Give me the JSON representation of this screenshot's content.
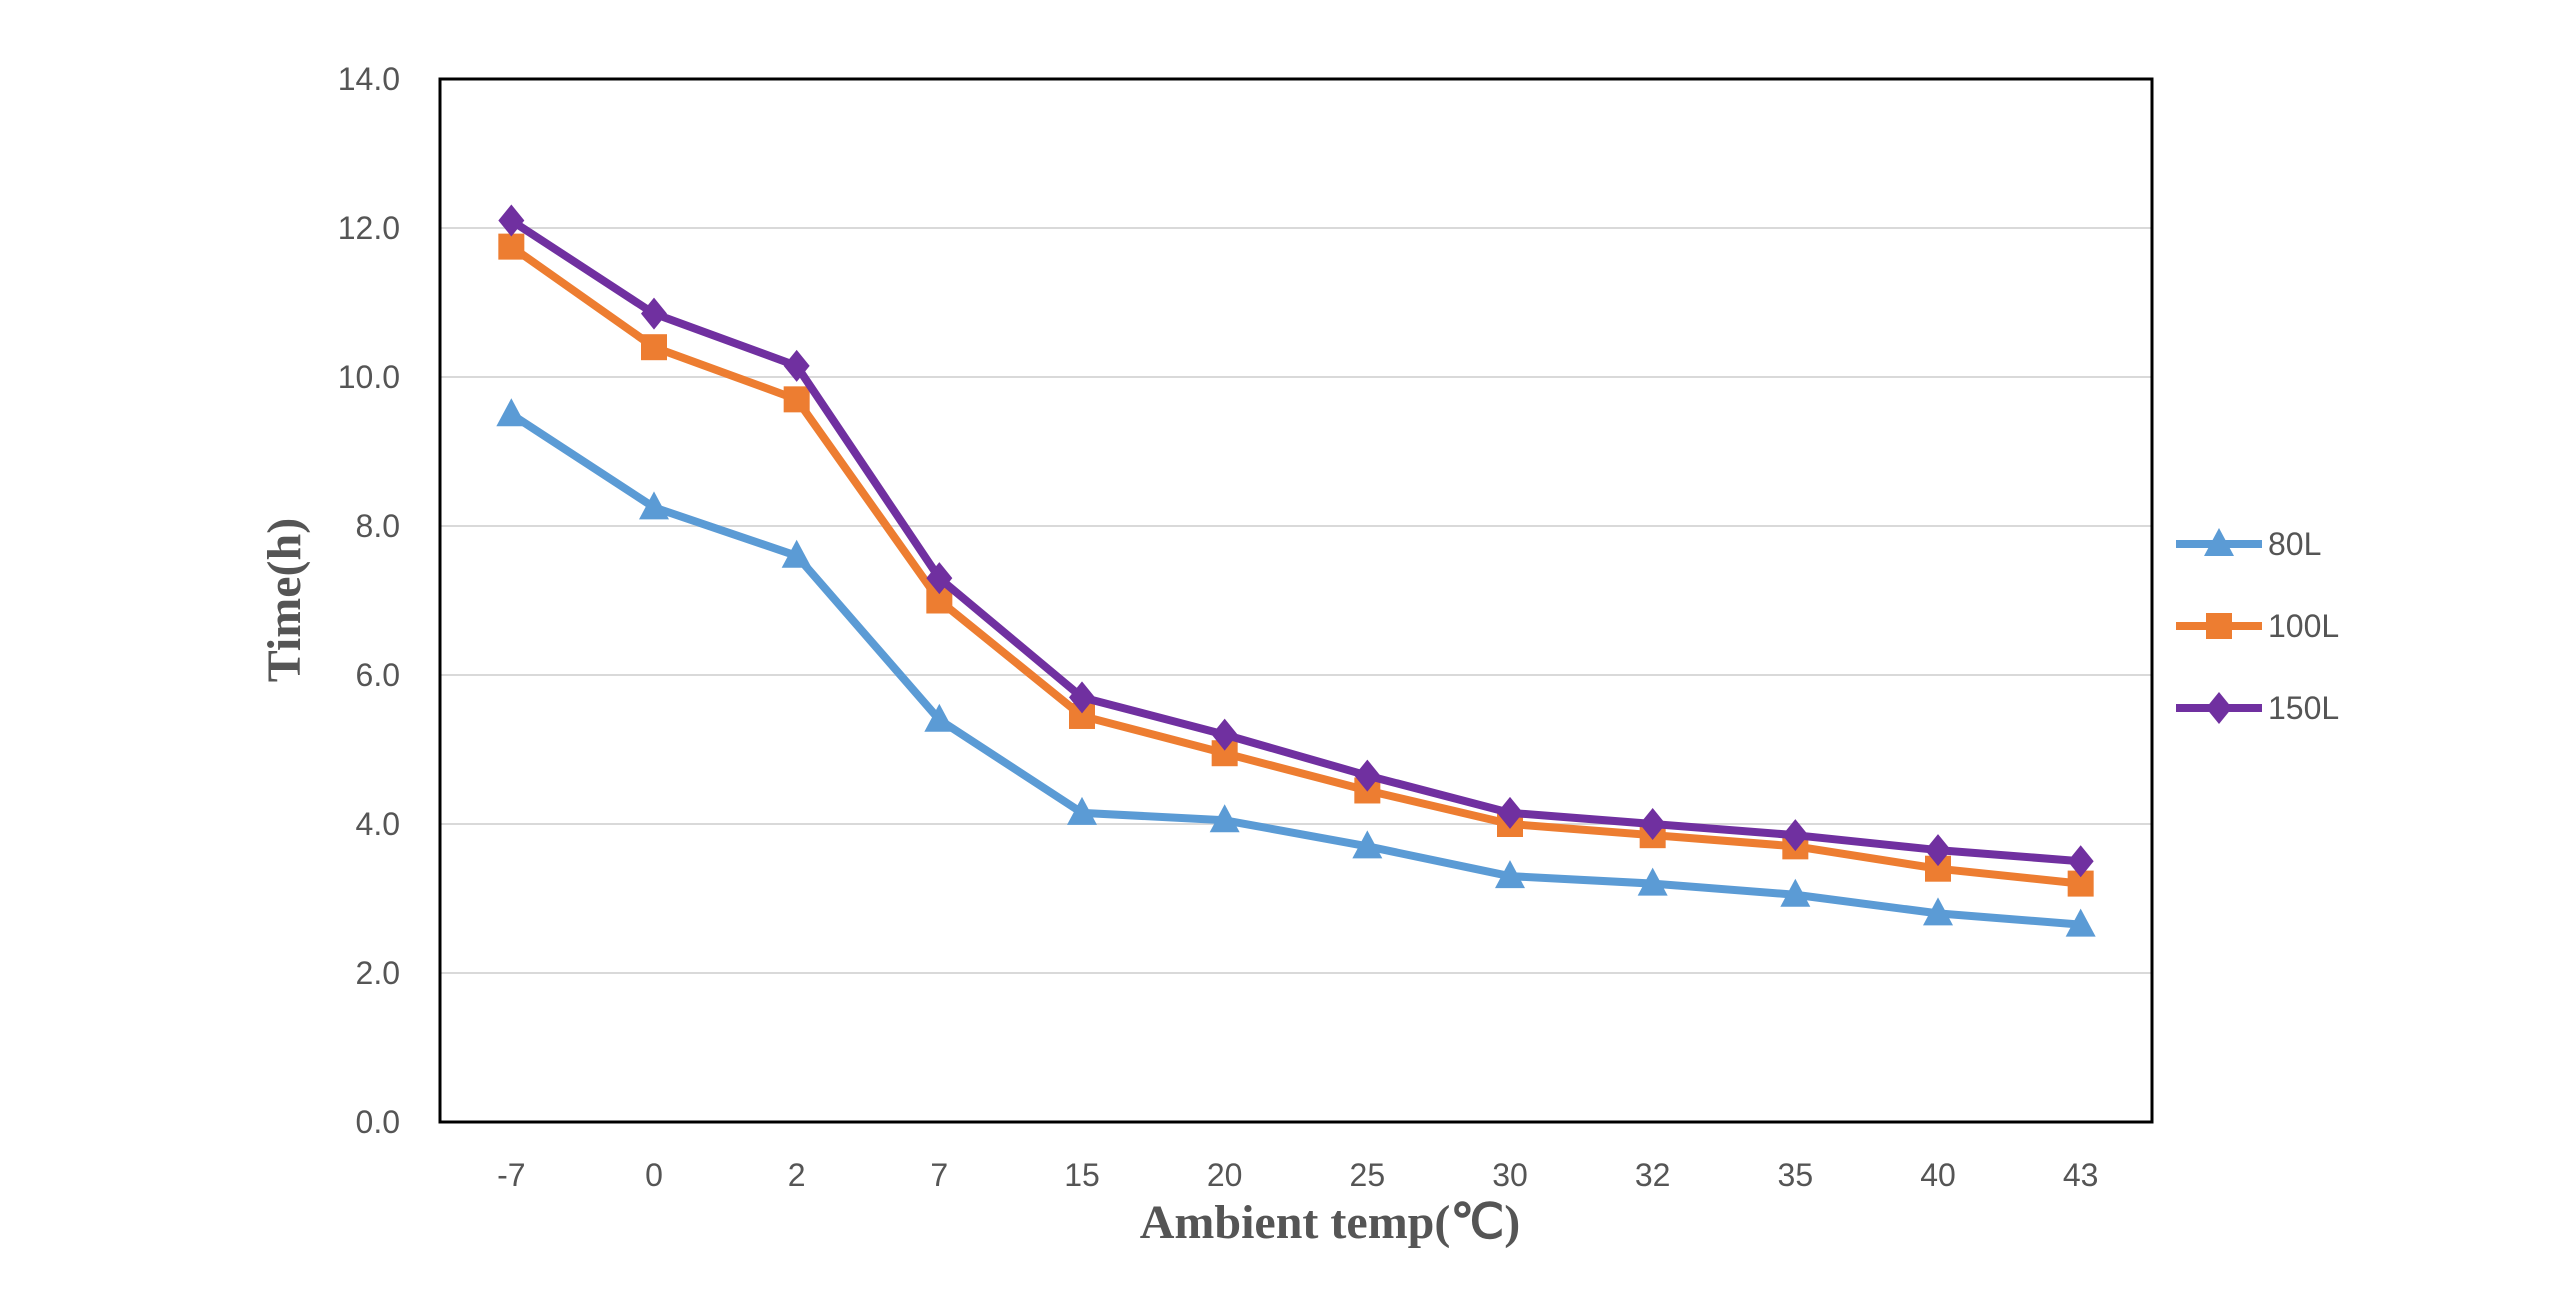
{
  "chart_data": {
    "type": "line",
    "title": "",
    "xlabel": "Ambient temp(℃)",
    "ylabel": "Time(h)",
    "categories": [
      "-7",
      "0",
      "2",
      "7",
      "15",
      "20",
      "25",
      "30",
      "32",
      "35",
      "40",
      "43"
    ],
    "y_tick_labels": [
      "0.0",
      "2.0",
      "4.0",
      "6.0",
      "8.0",
      "10.0",
      "12.0",
      "14.0"
    ],
    "ylim": [
      0,
      14
    ],
    "grid": true,
    "legend_position": "right",
    "series": [
      {
        "name": "80L",
        "marker": "triangle",
        "color": "#5B9BD5",
        "values": [
          9.5,
          8.25,
          7.6,
          5.4,
          4.15,
          4.05,
          3.7,
          3.3,
          3.2,
          3.05,
          2.8,
          2.65
        ]
      },
      {
        "name": "100L",
        "marker": "square",
        "color": "#ED7D31",
        "values": [
          11.75,
          10.4,
          9.7,
          7.0,
          5.45,
          4.95,
          4.45,
          4.0,
          3.85,
          3.7,
          3.4,
          3.2
        ]
      },
      {
        "name": "150L",
        "marker": "diamond",
        "color": "#7030A0",
        "values": [
          12.1,
          10.85,
          10.15,
          7.3,
          5.7,
          5.2,
          4.65,
          4.15,
          4.0,
          3.85,
          3.65,
          3.5
        ]
      }
    ]
  }
}
